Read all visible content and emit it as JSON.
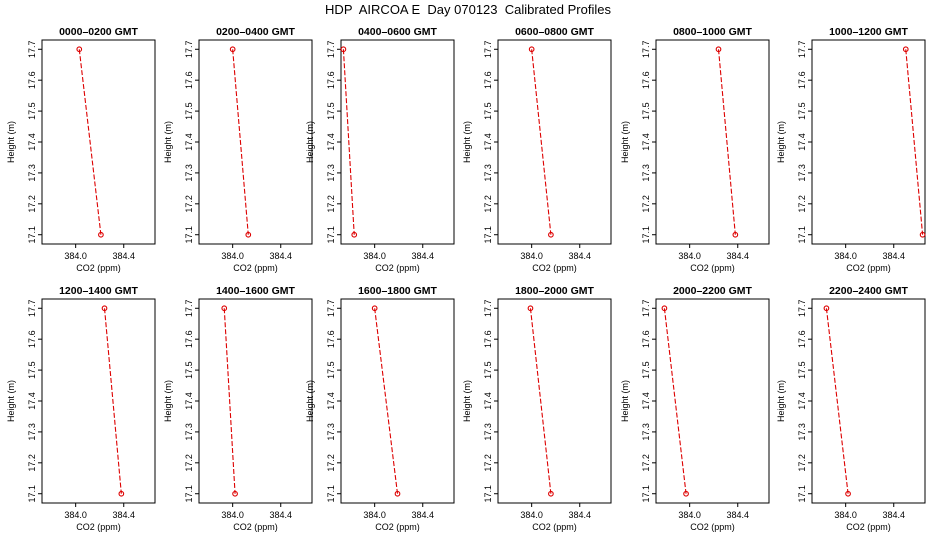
{
  "figure": {
    "title": "HDP  AIRCOA E  Day 070123  Calibrated Profiles"
  },
  "colors": {
    "series": "#dd0000",
    "axis": "#000000"
  },
  "chart_data": [
    {
      "type": "line",
      "title": "0000–0200 GMT",
      "xlabel": "CO2 (ppm)",
      "ylabel": "Height (m)",
      "xlim": [
        383.72,
        384.66
      ],
      "ylim": [
        17.07,
        17.73
      ],
      "xticks": [
        384.0,
        384.4
      ],
      "xtick_labels": [
        "384.0",
        "384.4"
      ],
      "yticks": [
        17.1,
        17.2,
        17.3,
        17.4,
        17.5,
        17.6,
        17.7
      ],
      "ytick_labels": [
        "17.1",
        "17.2",
        "17.3",
        "17.4",
        "17.5",
        "17.6",
        "17.7"
      ],
      "grid": false,
      "x": [
        384.03,
        384.21
      ],
      "y": [
        17.7,
        17.1
      ]
    },
    {
      "type": "line",
      "title": "0200–0400 GMT",
      "xlabel": "CO2 (ppm)",
      "ylabel": "Height (m)",
      "xlim": [
        383.72,
        384.66
      ],
      "ylim": [
        17.07,
        17.73
      ],
      "xticks": [
        384.0,
        384.4
      ],
      "xtick_labels": [
        "384.0",
        "384.4"
      ],
      "yticks": [
        17.1,
        17.2,
        17.3,
        17.4,
        17.5,
        17.6,
        17.7
      ],
      "ytick_labels": [
        "17.1",
        "17.2",
        "17.3",
        "17.4",
        "17.5",
        "17.6",
        "17.7"
      ],
      "grid": false,
      "x": [
        384.0,
        384.13
      ],
      "y": [
        17.7,
        17.1
      ]
    },
    {
      "type": "line",
      "title": "0400–0600 GMT",
      "xlabel": "CO2 (ppm)",
      "ylabel": "Height (m)",
      "xlim": [
        383.72,
        384.66
      ],
      "ylim": [
        17.07,
        17.73
      ],
      "xticks": [
        384.0,
        384.4
      ],
      "xtick_labels": [
        "384.0",
        "384.4"
      ],
      "yticks": [
        17.1,
        17.2,
        17.3,
        17.4,
        17.5,
        17.6,
        17.7
      ],
      "ytick_labels": [
        "17.1",
        "17.2",
        "17.3",
        "17.4",
        "17.5",
        "17.6",
        "17.7"
      ],
      "grid": false,
      "x": [
        383.74,
        383.83
      ],
      "y": [
        17.7,
        17.1
      ]
    },
    {
      "type": "line",
      "title": "0600–0800 GMT",
      "xlabel": "CO2 (ppm)",
      "ylabel": "Height (m)",
      "xlim": [
        383.72,
        384.66
      ],
      "ylim": [
        17.07,
        17.73
      ],
      "xticks": [
        384.0,
        384.4
      ],
      "xtick_labels": [
        "384.0",
        "384.4"
      ],
      "yticks": [
        17.1,
        17.2,
        17.3,
        17.4,
        17.5,
        17.6,
        17.7
      ],
      "ytick_labels": [
        "17.1",
        "17.2",
        "17.3",
        "17.4",
        "17.5",
        "17.6",
        "17.7"
      ],
      "grid": false,
      "x": [
        384.0,
        384.16
      ],
      "y": [
        17.7,
        17.1
      ]
    },
    {
      "type": "line",
      "title": "0800–1000 GMT",
      "xlabel": "CO2 (ppm)",
      "ylabel": "Height (m)",
      "xlim": [
        383.72,
        384.66
      ],
      "ylim": [
        17.07,
        17.73
      ],
      "xticks": [
        384.0,
        384.4
      ],
      "xtick_labels": [
        "384.0",
        "384.4"
      ],
      "yticks": [
        17.1,
        17.2,
        17.3,
        17.4,
        17.5,
        17.6,
        17.7
      ],
      "ytick_labels": [
        "17.1",
        "17.2",
        "17.3",
        "17.4",
        "17.5",
        "17.6",
        "17.7"
      ],
      "grid": false,
      "x": [
        384.24,
        384.38
      ],
      "y": [
        17.7,
        17.1
      ]
    },
    {
      "type": "line",
      "title": "1000–1200 GMT",
      "xlabel": "CO2 (ppm)",
      "ylabel": "Height (m)",
      "xlim": [
        383.72,
        384.66
      ],
      "ylim": [
        17.07,
        17.73
      ],
      "xticks": [
        384.0,
        384.4
      ],
      "xtick_labels": [
        "384.0",
        "384.4"
      ],
      "yticks": [
        17.1,
        17.2,
        17.3,
        17.4,
        17.5,
        17.6,
        17.7
      ],
      "ytick_labels": [
        "17.1",
        "17.2",
        "17.3",
        "17.4",
        "17.5",
        "17.6",
        "17.7"
      ],
      "grid": false,
      "x": [
        384.5,
        384.64
      ],
      "y": [
        17.7,
        17.1
      ]
    },
    {
      "type": "line",
      "title": "1200–1400 GMT",
      "xlabel": "CO2 (ppm)",
      "ylabel": "Height (m)",
      "xlim": [
        383.72,
        384.66
      ],
      "ylim": [
        17.07,
        17.73
      ],
      "xticks": [
        384.0,
        384.4
      ],
      "xtick_labels": [
        "384.0",
        "384.4"
      ],
      "yticks": [
        17.1,
        17.2,
        17.3,
        17.4,
        17.5,
        17.6,
        17.7
      ],
      "ytick_labels": [
        "17.1",
        "17.2",
        "17.3",
        "17.4",
        "17.5",
        "17.6",
        "17.7"
      ],
      "grid": false,
      "x": [
        384.24,
        384.38
      ],
      "y": [
        17.7,
        17.1
      ]
    },
    {
      "type": "line",
      "title": "1400–1600 GMT",
      "xlabel": "CO2 (ppm)",
      "ylabel": "Height (m)",
      "xlim": [
        383.72,
        384.66
      ],
      "ylim": [
        17.07,
        17.73
      ],
      "xticks": [
        384.0,
        384.4
      ],
      "xtick_labels": [
        "384.0",
        "384.4"
      ],
      "yticks": [
        17.1,
        17.2,
        17.3,
        17.4,
        17.5,
        17.6,
        17.7
      ],
      "ytick_labels": [
        "17.1",
        "17.2",
        "17.3",
        "17.4",
        "17.5",
        "17.6",
        "17.7"
      ],
      "grid": false,
      "x": [
        383.93,
        384.02
      ],
      "y": [
        17.7,
        17.1
      ]
    },
    {
      "type": "line",
      "title": "1600–1800 GMT",
      "xlabel": "CO2 (ppm)",
      "ylabel": "Height (m)",
      "xlim": [
        383.72,
        384.66
      ],
      "ylim": [
        17.07,
        17.73
      ],
      "xticks": [
        384.0,
        384.4
      ],
      "xtick_labels": [
        "384.0",
        "384.4"
      ],
      "yticks": [
        17.1,
        17.2,
        17.3,
        17.4,
        17.5,
        17.6,
        17.7
      ],
      "ytick_labels": [
        "17.1",
        "17.2",
        "17.3",
        "17.4",
        "17.5",
        "17.6",
        "17.7"
      ],
      "grid": false,
      "x": [
        384.0,
        384.19
      ],
      "y": [
        17.7,
        17.1
      ]
    },
    {
      "type": "line",
      "title": "1800–2000 GMT",
      "xlabel": "CO2 (ppm)",
      "ylabel": "Height (m)",
      "xlim": [
        383.72,
        384.66
      ],
      "ylim": [
        17.07,
        17.73
      ],
      "xticks": [
        384.0,
        384.4
      ],
      "xtick_labels": [
        "384.0",
        "384.4"
      ],
      "yticks": [
        17.1,
        17.2,
        17.3,
        17.4,
        17.5,
        17.6,
        17.7
      ],
      "ytick_labels": [
        "17.1",
        "17.2",
        "17.3",
        "17.4",
        "17.5",
        "17.6",
        "17.7"
      ],
      "grid": false,
      "x": [
        383.99,
        384.16
      ],
      "y": [
        17.7,
        17.1
      ]
    },
    {
      "type": "line",
      "title": "2000–2200 GMT",
      "xlabel": "CO2 (ppm)",
      "ylabel": "Height (m)",
      "xlim": [
        383.72,
        384.66
      ],
      "ylim": [
        17.07,
        17.73
      ],
      "xticks": [
        384.0,
        384.4
      ],
      "xtick_labels": [
        "384.0",
        "384.4"
      ],
      "yticks": [
        17.1,
        17.2,
        17.3,
        17.4,
        17.5,
        17.6,
        17.7
      ],
      "ytick_labels": [
        "17.1",
        "17.2",
        "17.3",
        "17.4",
        "17.5",
        "17.6",
        "17.7"
      ],
      "grid": false,
      "x": [
        383.79,
        383.97
      ],
      "y": [
        17.7,
        17.1
      ]
    },
    {
      "type": "line",
      "title": "2200–2400 GMT",
      "xlabel": "CO2 (ppm)",
      "ylabel": "Height (m)",
      "xlim": [
        383.72,
        384.66
      ],
      "ylim": [
        17.07,
        17.73
      ],
      "xticks": [
        384.0,
        384.4
      ],
      "xtick_labels": [
        "384.0",
        "384.4"
      ],
      "yticks": [
        17.1,
        17.2,
        17.3,
        17.4,
        17.5,
        17.6,
        17.7
      ],
      "ytick_labels": [
        "17.1",
        "17.2",
        "17.3",
        "17.4",
        "17.5",
        "17.6",
        "17.7"
      ],
      "grid": false,
      "x": [
        383.84,
        384.02
      ],
      "y": [
        17.7,
        17.1
      ]
    }
  ]
}
